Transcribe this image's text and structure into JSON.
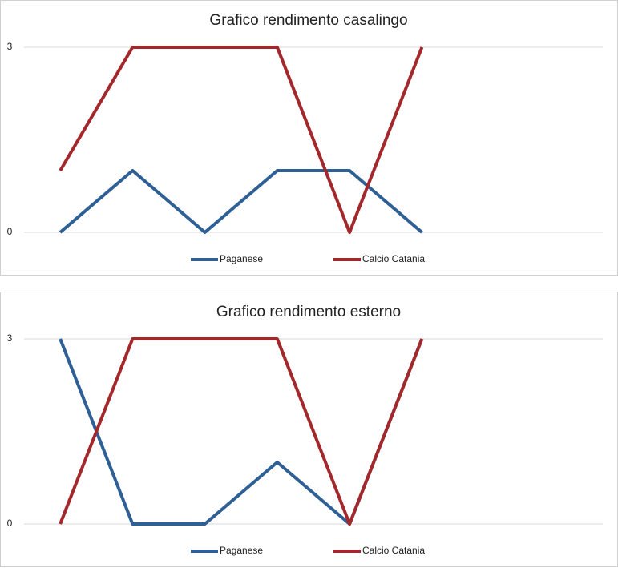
{
  "chart_data": [
    {
      "type": "line",
      "title": "Grafico rendimento casalingo",
      "categories": [
        null,
        null,
        null,
        null,
        null,
        null,
        null,
        null
      ],
      "series": [
        {
          "name": "Paganese",
          "color": "#2e6096",
          "values": [
            0,
            1,
            0,
            1,
            1,
            0,
            null,
            null
          ]
        },
        {
          "name": "Calcio Catania",
          "color": "#a3282b",
          "values": [
            1,
            3,
            3,
            3,
            0,
            3,
            null,
            null
          ]
        }
      ],
      "ylim": [
        0,
        3
      ],
      "yticks": [
        0,
        3
      ],
      "grid": true,
      "legend": "bottom"
    },
    {
      "type": "line",
      "title": "Grafico rendimento esterno",
      "categories": [
        null,
        null,
        null,
        null,
        null,
        null,
        null,
        null
      ],
      "series": [
        {
          "name": "Paganese",
          "color": "#2e6096",
          "values": [
            3,
            0,
            0,
            1,
            0,
            3,
            null,
            null
          ]
        },
        {
          "name": "Calcio Catania",
          "color": "#a3282b",
          "values": [
            0,
            3,
            3,
            3,
            0,
            3,
            null,
            null
          ]
        }
      ],
      "ylim": [
        0,
        3
      ],
      "yticks": [
        0,
        3
      ],
      "grid": true,
      "legend": "bottom"
    }
  ]
}
